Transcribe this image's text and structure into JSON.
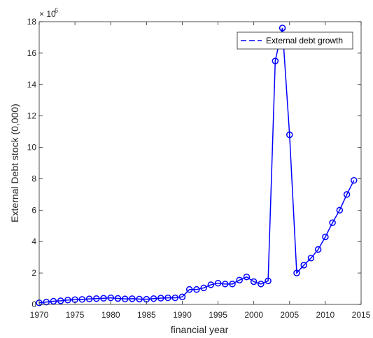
{
  "chart_data": {
    "type": "line",
    "xlabel": "financial year",
    "ylabel": "External Debt stock (0,000)",
    "exponent_base": "× 10",
    "exponent_power": "6",
    "xlim": [
      1970,
      2015
    ],
    "ylim": [
      0,
      18000000
    ],
    "x_ticks": [
      1970,
      1975,
      1980,
      1985,
      1990,
      1995,
      2000,
      2005,
      2010,
      2015
    ],
    "y_ticks": [
      0,
      2000000,
      4000000,
      6000000,
      8000000,
      10000000,
      12000000,
      14000000,
      16000000,
      18000000
    ],
    "y_tick_labels": [
      "0",
      "2",
      "4",
      "6",
      "8",
      "10",
      "12",
      "14",
      "16",
      "18"
    ],
    "x_tick_labels": [
      "1970",
      "1975",
      "1980",
      "1985",
      "1990",
      "1995",
      "2000",
      "2005",
      "2010",
      "2015"
    ],
    "legend_position": "top-right",
    "grid": false,
    "series": [
      {
        "name": "External debt growth",
        "color": "#0000ff",
        "line_style": "dashed",
        "marker": "circle",
        "x": [
          1970,
          1971,
          1972,
          1973,
          1974,
          1975,
          1976,
          1977,
          1978,
          1979,
          1980,
          1981,
          1982,
          1983,
          1984,
          1985,
          1986,
          1987,
          1988,
          1989,
          1990,
          1991,
          1992,
          1993,
          1994,
          1995,
          1996,
          1997,
          1998,
          1999,
          2000,
          2001,
          2002,
          2003,
          2004,
          2005,
          2006,
          2007,
          2008,
          2009,
          2010,
          2011,
          2012,
          2013,
          2014
        ],
        "y": [
          100000,
          150000,
          200000,
          230000,
          280000,
          300000,
          320000,
          350000,
          370000,
          390000,
          420000,
          380000,
          350000,
          360000,
          340000,
          330000,
          370000,
          400000,
          420000,
          420000,
          480000,
          950000,
          950000,
          1050000,
          1250000,
          1350000,
          1300000,
          1300000,
          1550000,
          1750000,
          1450000,
          1300000,
          1500000,
          15500000,
          17600000,
          10800000,
          2000000,
          2500000,
          2950000,
          3500000,
          4300000,
          5200000,
          6000000,
          7000000,
          7900000
        ]
      }
    ]
  }
}
